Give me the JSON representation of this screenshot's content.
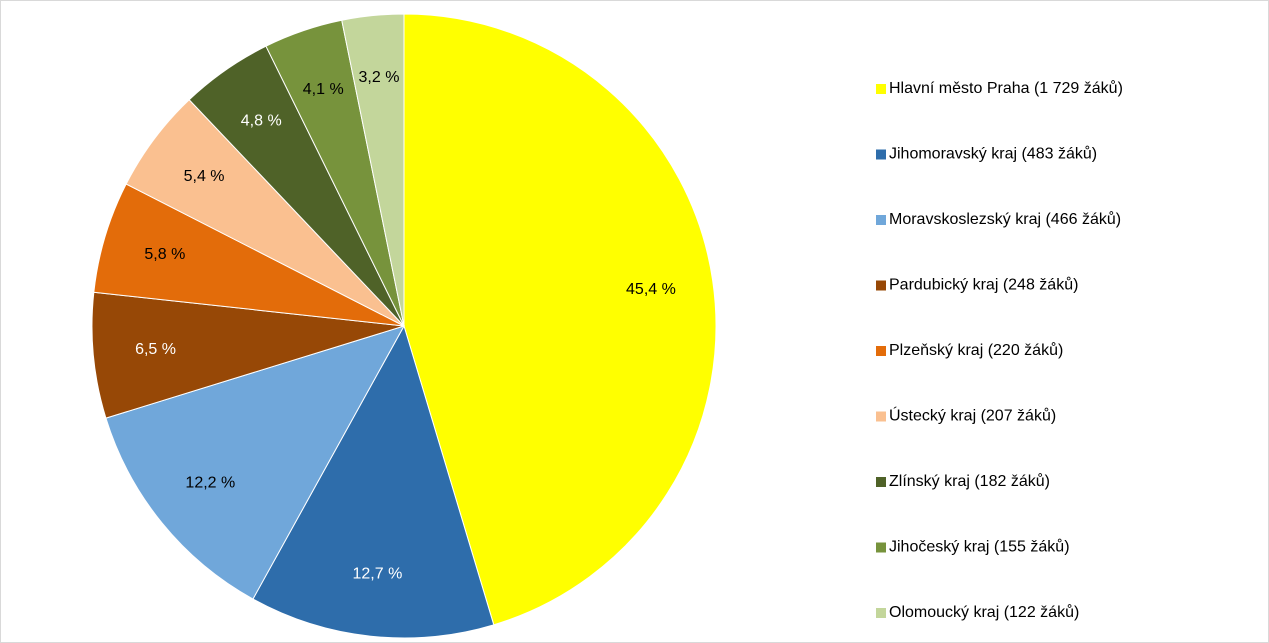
{
  "chart_data": {
    "type": "pie",
    "categories": [
      "Hlavní město Praha (1 729 žáků)",
      "Jihomoravský kraj (483 žáků)",
      "Moravskoslezský kraj (466 žáků)",
      "Pardubický kraj (248 žáků)",
      "Plzeňský kraj (220 žáků)",
      "Ústecký kraj (207 žáků)",
      "Zlínský kraj (182 žáků)",
      "Jihočeský kraj (155 žáků)",
      "Olomoucký kraj (122 žáků)"
    ],
    "values": [
      45.4,
      12.7,
      12.2,
      6.5,
      5.8,
      5.4,
      4.8,
      4.1,
      3.2
    ],
    "value_labels": [
      "45,4 %",
      "12,7 %",
      "12,2 %",
      "6,5 %",
      "5,8 %",
      "5,4 %",
      "4,8 %",
      "4,1 %",
      "3,2 %"
    ],
    "colors": [
      "#ffff00",
      "#2e6dab",
      "#70a7da",
      "#974806",
      "#e36c0a",
      "#fac090",
      "#4f6228",
      "#77933c",
      "#c3d69b"
    ],
    "legend": "right"
  }
}
